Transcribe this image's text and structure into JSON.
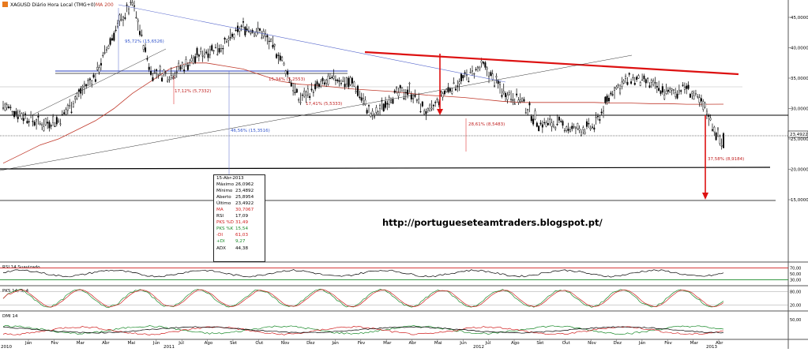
{
  "header": {
    "symbol_label": "XAGUSD Diário Hora Local (TMG+0)",
    "ma_label": "MA 200"
  },
  "url": "http://portugueseteamtraders.blogspot.pt/",
  "tooltip": {
    "date": "15-Abr-2013",
    "rows": [
      {
        "label": "Máximo",
        "value": "26,0962",
        "color": "#000000"
      },
      {
        "label": "Mínimo",
        "value": "23,4892",
        "color": "#000000"
      },
      {
        "label": "Aberto",
        "value": "25,8954",
        "color": "#000000"
      },
      {
        "label": "Último",
        "value": "23,4922",
        "color": "#000000"
      },
      {
        "label": "MA",
        "value": "30,7067",
        "color": "#d02020"
      },
      {
        "label": "RSI",
        "value": "17,09",
        "color": "#000000"
      },
      {
        "label": "PKS %D",
        "value": "31,49",
        "color": "#d02020"
      },
      {
        "label": "PKS %K",
        "value": "15,54",
        "color": "#1a8a2a"
      },
      {
        "label": "-DI",
        "value": "61,03",
        "color": "#d02020"
      },
      {
        "label": "+DI",
        "value": "9,27",
        "color": "#1a8a2a"
      },
      {
        "label": "ADX",
        "value": "44,38",
        "color": "#000000"
      }
    ]
  },
  "price_axis": {
    "ticks": [
      "45,0000",
      "40,0000",
      "35,0000",
      "30,0000",
      "25,0000",
      "20,0000",
      "15,0000"
    ],
    "last_price": "23,4922"
  },
  "annotations": [
    {
      "text": "95,72% (15,6526)",
      "color": "#3355cc"
    },
    {
      "text": "17,12% (5,7332)",
      "color": "#c02020"
    },
    {
      "text": "46,56% (15,3516)",
      "color": "#3355cc"
    },
    {
      "text": "15,34% (5,2553)",
      "color": "#c02020"
    },
    {
      "text": "17,41% (5,5333)",
      "color": "#c02020"
    },
    {
      "text": "28,61% (8,5483)",
      "color": "#c02020"
    },
    {
      "text": "37,58% (8,9184)",
      "color": "#c02020"
    }
  ],
  "indicators": {
    "rsi": {
      "label": "RSI 14 Suavizado",
      "levels": [
        "70,00",
        "50,00",
        "30,00"
      ]
    },
    "pks": {
      "label": "PKS 14, 3, 4",
      "levels": [
        "80,00",
        "20,00"
      ]
    },
    "dmi": {
      "label": "DMI 14",
      "levels": [
        "50,00"
      ]
    }
  },
  "time_axis": {
    "labels": [
      {
        "text": "Jan",
        "row": "top"
      },
      {
        "text": "Fev",
        "row": "top"
      },
      {
        "text": "Mar",
        "row": "top"
      },
      {
        "text": "Abr",
        "row": "top"
      },
      {
        "text": "Mai",
        "row": "top"
      },
      {
        "text": "Jun",
        "row": "top"
      },
      {
        "text": "Jul",
        "row": "top"
      },
      {
        "text": "Ago",
        "row": "top"
      },
      {
        "text": "Set",
        "row": "top"
      },
      {
        "text": "Out",
        "row": "top"
      },
      {
        "text": "Nov",
        "row": "top"
      },
      {
        "text": "Dez",
        "row": "top"
      },
      {
        "text": "Jan",
        "row": "top"
      },
      {
        "text": "Fev",
        "row": "top"
      },
      {
        "text": "Mar",
        "row": "top"
      },
      {
        "text": "Abr",
        "row": "top"
      },
      {
        "text": "Mai",
        "row": "top"
      },
      {
        "text": "Jun",
        "row": "top"
      },
      {
        "text": "Jul",
        "row": "top"
      },
      {
        "text": "Ago",
        "row": "top"
      },
      {
        "text": "Set",
        "row": "top"
      },
      {
        "text": "Out",
        "row": "top"
      },
      {
        "text": "Nov",
        "row": "top"
      },
      {
        "text": "Dez",
        "row": "top"
      },
      {
        "text": "Jan",
        "row": "top"
      },
      {
        "text": "Fev",
        "row": "top"
      },
      {
        "text": "Mar",
        "row": "top"
      },
      {
        "text": "Abr",
        "row": "top"
      }
    ],
    "years": [
      "2010",
      "2011",
      "2012",
      "2013"
    ]
  },
  "colors": {
    "candle": "#000000",
    "ma200": "#c0392b",
    "trend_red": "#dd1111",
    "trend_blue": "#5566cc",
    "support_black": "#000000",
    "rsi_line": "#000000",
    "pks_k": "#1a8a2a",
    "pks_d": "#d02020",
    "dmi_plus": "#1a8a2a",
    "dmi_minus": "#d02020",
    "adx": "#000000"
  },
  "chart_data": {
    "type": "line",
    "title": "XAGUSD Diário Hora Local (TMG+0)",
    "xlabel": "",
    "ylabel": "",
    "ylim": [
      15,
      48
    ],
    "grid": true,
    "x": [
      "2010-01",
      "2010-02",
      "2010-03",
      "2010-04",
      "2010-05",
      "2010-06",
      "2010-07",
      "2010-08",
      "2010-09",
      "2010-10",
      "2010-11",
      "2010-12",
      "2011-01",
      "2011-02",
      "2011-03",
      "2011-04",
      "2011-05",
      "2011-06",
      "2011-07",
      "2011-08",
      "2011-09",
      "2011-10",
      "2011-11",
      "2011-12",
      "2012-01",
      "2012-02",
      "2012-03",
      "2012-04",
      "2012-05",
      "2012-06",
      "2012-07",
      "2012-08",
      "2012-09",
      "2012-10",
      "2012-11",
      "2012-12",
      "2013-01",
      "2013-02",
      "2013-03",
      "2013-04"
    ],
    "series": [
      {
        "name": "XAGUSD",
        "values": [
          30.5,
          29.0,
          27.5,
          28.0,
          32.0,
          35.5,
          42.5,
          47.5,
          36.0,
          35.5,
          37.5,
          39.5,
          40.5,
          43.5,
          42.5,
          38.5,
          31.5,
          33.5,
          35.0,
          34.0,
          28.5,
          32.0,
          33.0,
          29.0,
          33.0,
          35.0,
          37.0,
          33.0,
          31.5,
          27.5,
          27.5,
          26.5,
          27.0,
          33.0,
          35.0,
          34.0,
          32.5,
          33.5,
          30.0,
          23.49
        ]
      },
      {
        "name": "MA 200",
        "values": [
          21.0,
          22.5,
          24.0,
          25.0,
          26.5,
          28.0,
          30.0,
          32.5,
          34.5,
          36.5,
          37.5,
          37.5,
          37.0,
          36.5,
          35.5,
          34.5,
          34.0,
          33.8,
          33.5,
          33.2,
          33.0,
          32.8,
          32.5,
          32.2,
          32.0,
          31.8,
          31.5,
          31.2,
          31.0,
          31.0,
          31.0,
          31.0,
          31.0,
          30.9,
          30.9,
          30.8,
          30.8,
          30.7,
          30.7,
          30.71
        ]
      }
    ]
  }
}
